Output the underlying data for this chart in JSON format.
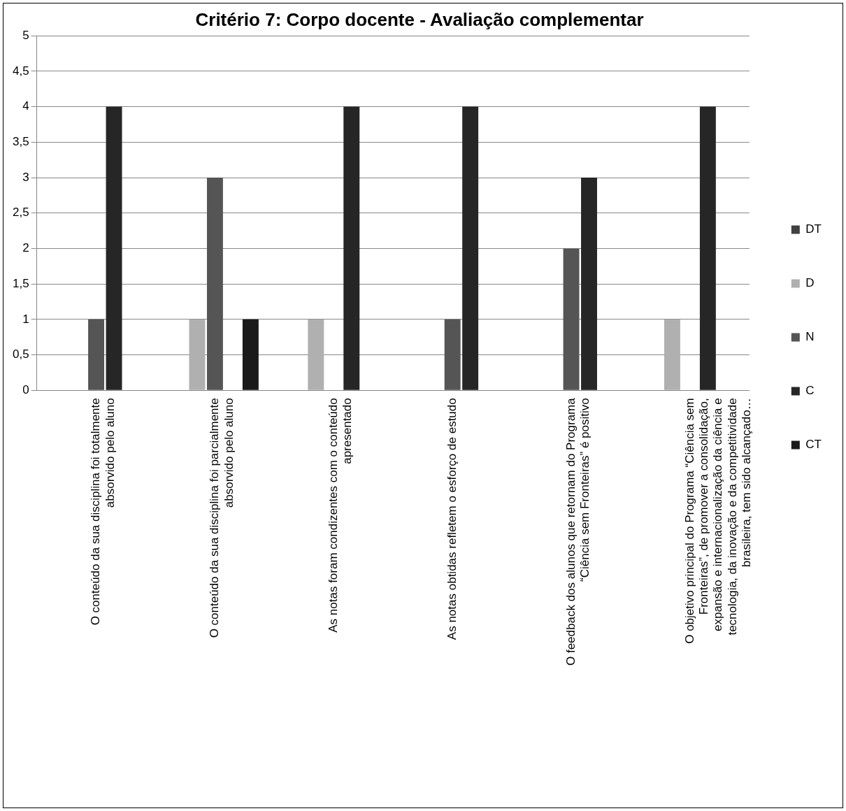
{
  "chart_data": {
    "type": "bar",
    "title": "Critério 7: Corpo docente - Avaliação complementar",
    "categories": [
      "O conteúdo da sua disciplina foi totalmente absorvido pelo aluno",
      "O conteúdo da sua disciplina foi parcialmente absorvido pelo aluno",
      "As notas foram condizentes com o conteúdo apresentado",
      "As notas obtidas refletem o esforço de estudo",
      "O feedback dos alunos que retornam do Programa “Ciência sem Fronteiras” é positivo",
      "O objetivo principal do Programa “Ciência sem Fronteiras”, de promover a consolidação, expansão e internacionalização da ciência e tecnologia, da inovação e da competitividade brasileira, tem sido alcançado…"
    ],
    "series": [
      {
        "name": "DT",
        "color": "#404040",
        "values": [
          0,
          0,
          0,
          0,
          0,
          0
        ]
      },
      {
        "name": "D",
        "color": "#b0b0b0",
        "values": [
          0,
          1,
          1,
          0,
          0,
          1
        ]
      },
      {
        "name": "N",
        "color": "#555555",
        "values": [
          1,
          3,
          0,
          1,
          2,
          0
        ]
      },
      {
        "name": "C",
        "color": "#262626",
        "values": [
          4,
          0,
          4,
          4,
          3,
          4
        ]
      },
      {
        "name": "CT",
        "color": "#1a1a1a",
        "values": [
          0,
          1,
          0,
          0,
          0,
          0
        ]
      }
    ],
    "ylim": [
      0,
      5
    ],
    "yticks": [
      0,
      {
        "value": 0.5,
        "label": "0,5"
      },
      1,
      {
        "value": 1.5,
        "label": "1,5"
      },
      2,
      {
        "value": 2.5,
        "label": "2,5"
      },
      3,
      {
        "value": 3.5,
        "label": "3,5"
      },
      4,
      {
        "value": 4.5,
        "label": "4,5"
      },
      5
    ],
    "grid": "y",
    "legend": "right"
  }
}
